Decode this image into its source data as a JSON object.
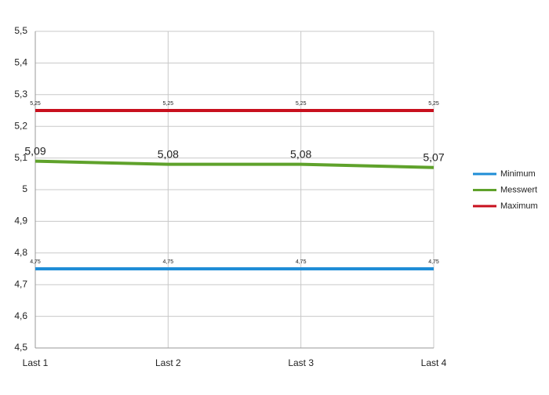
{
  "chart_data": {
    "type": "line",
    "categories": [
      "Last 1",
      "Last 2",
      "Last 3",
      "Last 4"
    ],
    "series": [
      {
        "name": "Minimum",
        "color": "#1f8dd6",
        "values": [
          4.75,
          4.75,
          4.75,
          4.75
        ],
        "value_labels": [
          "4,75",
          "4,75",
          "4,75",
          "4,75"
        ]
      },
      {
        "name": "Messwert",
        "color": "#5fa22b",
        "values": [
          5.09,
          5.08,
          5.08,
          5.07
        ],
        "value_labels": [
          "5,09",
          "5,08",
          "5,08",
          "5,07"
        ]
      },
      {
        "name": "Maximum",
        "color": "#c8101e",
        "values": [
          5.25,
          5.25,
          5.25,
          5.25
        ],
        "value_labels": [
          "5,25",
          "5,25",
          "5,25",
          "5,25"
        ]
      }
    ],
    "ylim": [
      4.5,
      5.5
    ],
    "yticks": [
      {
        "value": 4.5,
        "label": "4,5"
      },
      {
        "value": 4.6,
        "label": "4,6"
      },
      {
        "value": 4.7,
        "label": "4,7"
      },
      {
        "value": 4.8,
        "label": "4,8"
      },
      {
        "value": 4.9,
        "label": "4,9"
      },
      5,
      {
        "value": 5.1,
        "label": "5,1"
      },
      {
        "value": 5.2,
        "label": "5,2"
      },
      {
        "value": 5.3,
        "label": "5,3"
      },
      {
        "value": 5.4,
        "label": "5,4"
      },
      {
        "value": 5.5,
        "label": "5,5"
      }
    ],
    "grid": true,
    "legend": "right"
  }
}
